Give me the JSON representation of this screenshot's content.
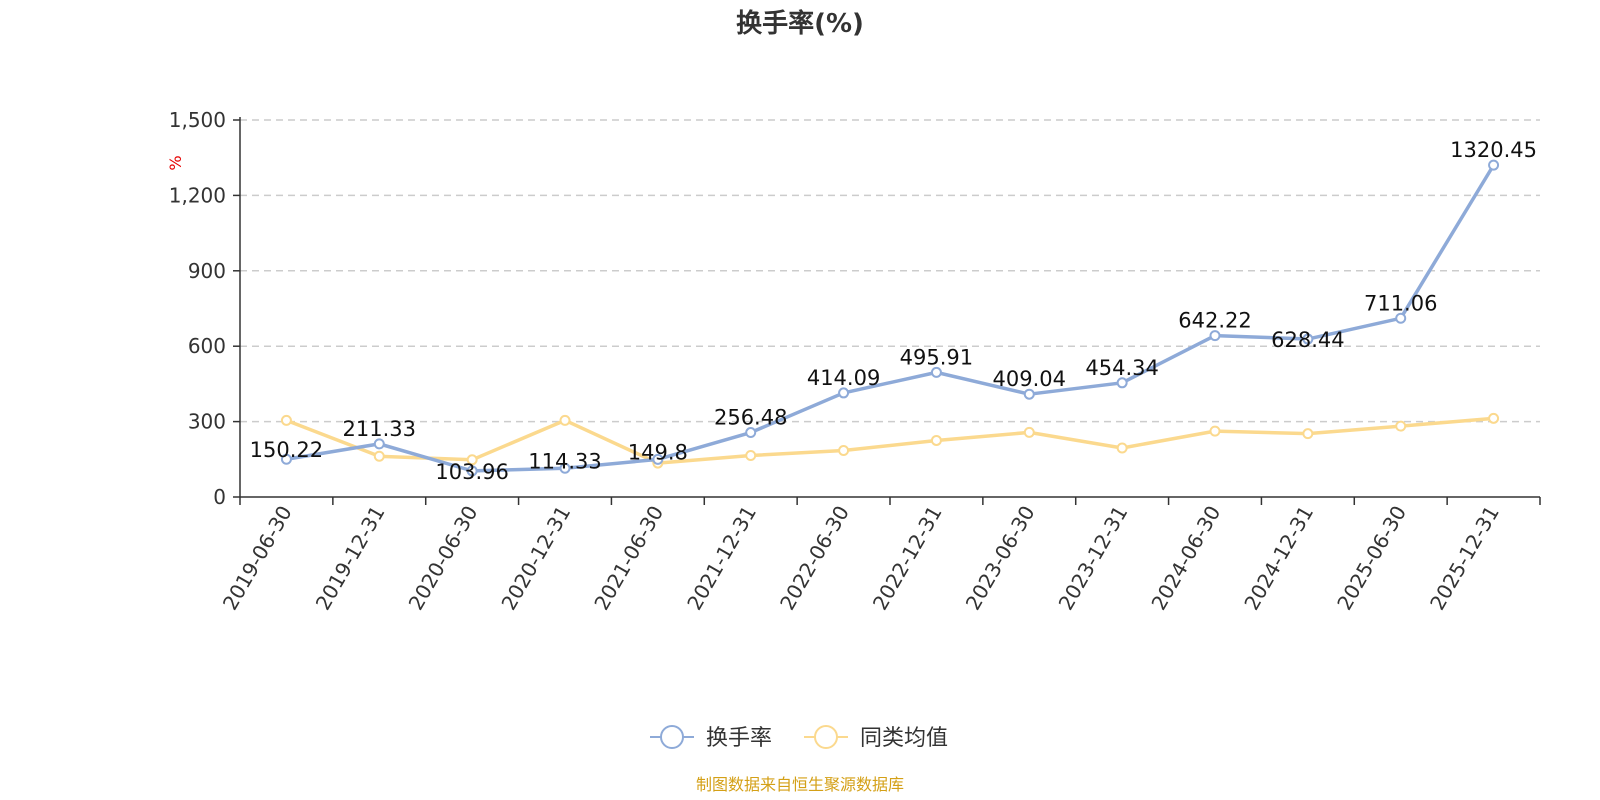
{
  "chart_data": {
    "type": "line",
    "title": "换手率(%)",
    "ylabel": "%",
    "ylim": [
      0,
      1500
    ],
    "yticks": [
      0,
      300,
      600,
      900,
      1200,
      1500
    ],
    "ytick_labels": [
      "0",
      "300",
      "600",
      "900",
      "1,200",
      "1,500"
    ],
    "grid": true,
    "categories": [
      "2019-06-30",
      "2019-12-31",
      "2020-06-30",
      "2020-12-31",
      "2021-06-30",
      "2021-12-31",
      "2022-06-30",
      "2022-12-31",
      "2023-06-30",
      "2023-12-31",
      "2024-06-30",
      "2024-12-31",
      "2025-06-30",
      "2025-12-31"
    ],
    "series": [
      {
        "name": "换手率",
        "color": "#8eaad8",
        "values": [
          150.22,
          211.33,
          103.96,
          114.33,
          149.8,
          256.48,
          414.09,
          495.91,
          409.04,
          454.34,
          642.22,
          628.44,
          711.06,
          1320.45
        ],
        "labels": [
          "150.22",
          "211.33",
          "103.96",
          "114.33",
          "149.8",
          "256.48",
          "414.09",
          "495.91",
          "409.04",
          "454.34",
          "642.22",
          "628.44",
          "711.06",
          "1320.45"
        ]
      },
      {
        "name": "同类均值",
        "color": "#fbd98e",
        "values": [
          305,
          162,
          148,
          305,
          135,
          165,
          185,
          225,
          257,
          195,
          262,
          252,
          282,
          313
        ]
      }
    ],
    "legend_position": "bottom",
    "source": "制图数据来自恒生聚源数据库"
  }
}
